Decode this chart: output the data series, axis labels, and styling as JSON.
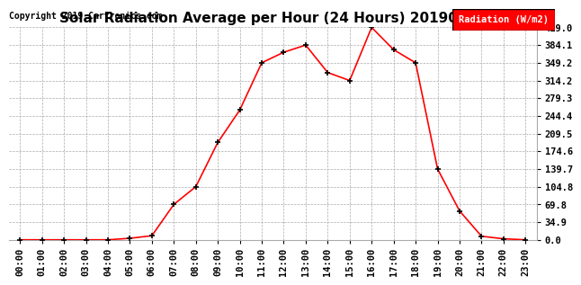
{
  "title": "Solar Radiation Average per Hour (24 Hours) 20190529",
  "copyright": "Copyright 2019 Cartronics.com",
  "legend_label": "Radiation (W/m2)",
  "hours": [
    "00:00",
    "01:00",
    "02:00",
    "03:00",
    "04:00",
    "05:00",
    "06:00",
    "07:00",
    "08:00",
    "09:00",
    "10:00",
    "11:00",
    "12:00",
    "13:00",
    "14:00",
    "15:00",
    "16:00",
    "17:00",
    "18:00",
    "19:00",
    "20:00",
    "21:00",
    "22:00",
    "23:00"
  ],
  "values": [
    0.0,
    0.0,
    0.0,
    0.0,
    0.0,
    3.0,
    8.0,
    69.8,
    104.8,
    192.0,
    256.0,
    349.2,
    370.0,
    384.1,
    330.0,
    314.2,
    419.0,
    375.0,
    349.2,
    139.7,
    57.0,
    7.0,
    2.0,
    0.0
  ],
  "yticks": [
    0.0,
    34.9,
    69.8,
    104.8,
    139.7,
    174.6,
    209.5,
    244.4,
    279.3,
    314.2,
    349.2,
    384.1,
    419.0
  ],
  "line_color": "red",
  "marker_color": "black",
  "bg_color": "#ffffff",
  "grid_color": "#aaaaaa",
  "legend_bg": "red",
  "legend_text_color": "white",
  "title_fontsize": 11,
  "copyright_fontsize": 7,
  "tick_fontsize": 7.5,
  "ylim": [
    0.0,
    419.0
  ]
}
